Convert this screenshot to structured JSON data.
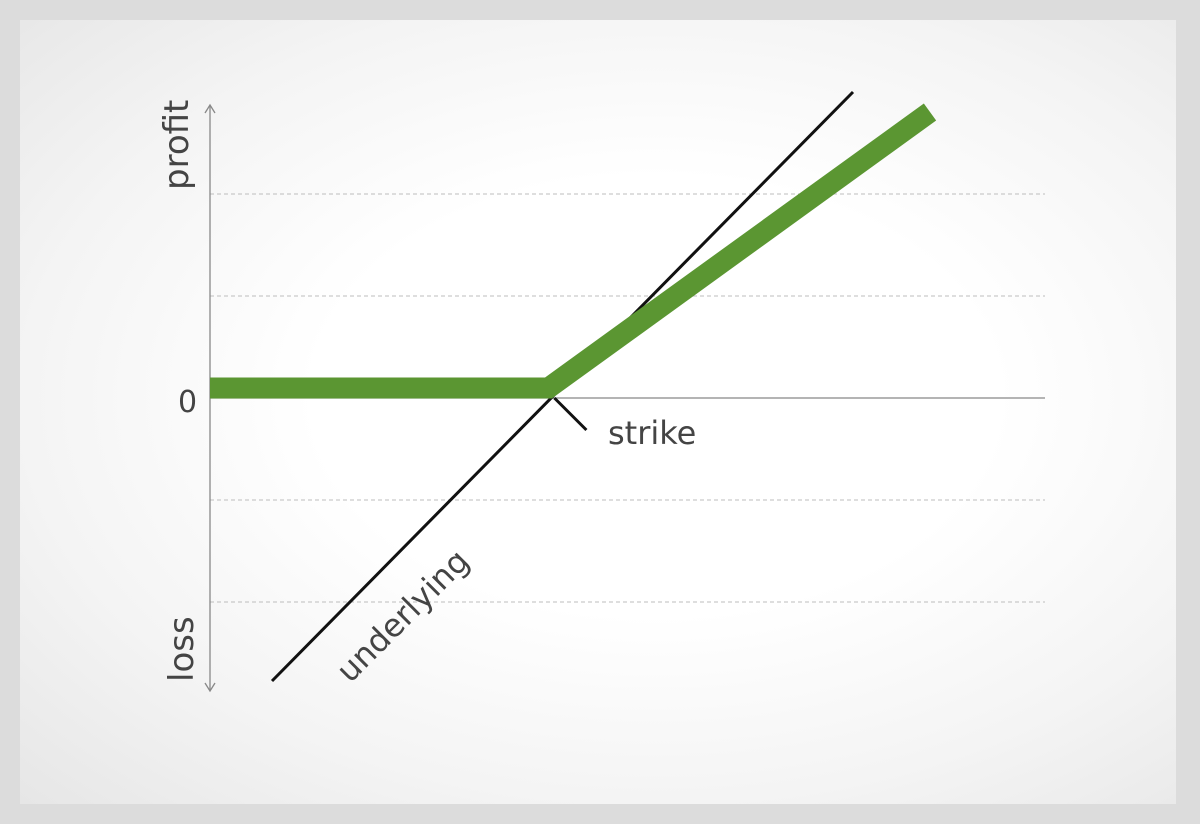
{
  "chart_data": {
    "type": "line",
    "x": [
      0,
      10
    ],
    "ylim": [
      -3,
      3
    ],
    "xlim": [
      0,
      10
    ],
    "grid": true,
    "strike": 4.7,
    "series": [
      {
        "name": "underlying",
        "x": [
          1,
          9
        ],
        "y": [
          -3,
          3.2
        ]
      },
      {
        "name": "",
        "x": [
          0,
          4.7,
          10
        ],
        "y": [
          0.1,
          0.1,
          2.9
        ]
      }
    ],
    "labels": {
      "profit": "profit",
      "loss": "loss",
      "zero": "0",
      "strike": "strike",
      "underlying": "underlying"
    },
    "colors": {
      "payoff": "#5b9632",
      "underlying": "#111111",
      "axis": "#888888",
      "grid": "#bdbdbd"
    }
  }
}
